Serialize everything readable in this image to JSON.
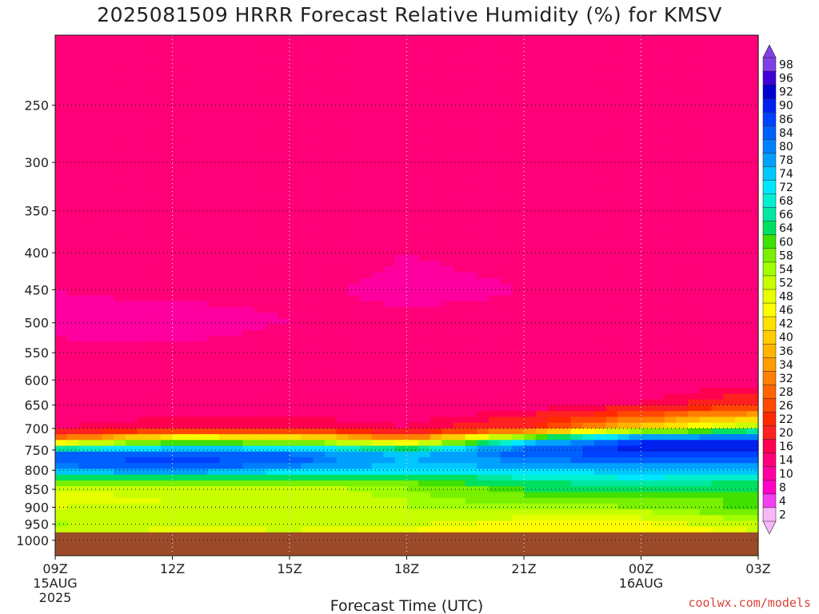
{
  "title": "2025081509 HRRR Forecast Relative Humidity (%) for KMSV",
  "credit": "coolwx.com/models",
  "chart_data": {
    "type": "heatmap",
    "title": "2025081509 HRRR Forecast Relative Humidity (%) for KMSV",
    "xlabel": "Forecast Time (UTC)",
    "ylabel": "",
    "x_ticks": [
      "09Z",
      "12Z",
      "15Z",
      "18Z",
      "21Z",
      "00Z",
      "03Z"
    ],
    "x_tick_hours": [
      0,
      3,
      6,
      9,
      12,
      15,
      18
    ],
    "x_sublabels": [
      {
        "tick": "09Z",
        "lines": [
          "15AUG",
          "2025"
        ]
      },
      {
        "tick": "00Z",
        "lines": [
          "16AUG"
        ]
      }
    ],
    "x_range_hours": [
      0,
      18
    ],
    "y_ticks": [
      250,
      300,
      350,
      400,
      450,
      500,
      550,
      600,
      650,
      700,
      750,
      800,
      850,
      900,
      950,
      1000
    ],
    "y_range_hpa": [
      200,
      1050
    ],
    "y_scale": "log-pressure",
    "grid": true,
    "below_ground_color": "#9b4a2a",
    "colorbar": {
      "levels": [
        2,
        4,
        8,
        10,
        14,
        16,
        20,
        22,
        26,
        28,
        32,
        34,
        36,
        40,
        42,
        46,
        48,
        52,
        54,
        58,
        60,
        64,
        66,
        68,
        72,
        74,
        78,
        80,
        84,
        86,
        90,
        92,
        96,
        98
      ],
      "colors": [
        "#f7b8f7",
        "#f040f0",
        "#ff00c8",
        "#ff00a0",
        "#ff0078",
        "#ff0050",
        "#ff2020",
        "#ff2a00",
        "#ff4800",
        "#ff6400",
        "#ff8000",
        "#ff9c00",
        "#ffb400",
        "#ffcc00",
        "#ffe000",
        "#ffff00",
        "#e8ff00",
        "#c8ff00",
        "#a0ff00",
        "#78f000",
        "#40e000",
        "#00e060",
        "#00e8a0",
        "#00f0d0",
        "#00e8ff",
        "#00c8ff",
        "#00a0ff",
        "#0080ff",
        "#0060ff",
        "#0040ff",
        "#0020f0",
        "#0000d0",
        "#4000d8",
        "#8040e8"
      ],
      "position": "right"
    },
    "rh_profile_p": [
      200,
      250,
      300,
      350,
      400,
      450,
      500,
      550,
      600,
      650,
      700,
      715,
      730,
      745,
      760,
      780,
      800,
      820,
      850,
      880,
      900,
      930,
      960,
      975,
      1000
    ],
    "columns": [
      {
        "hour": 0,
        "surface_hpa": 975,
        "rh": [
          12,
          10,
          12,
          12,
          12,
          10,
          9,
          11,
          12,
          11,
          14,
          20,
          40,
          62,
          80,
          82,
          76,
          60,
          48,
          46,
          48,
          50,
          54,
          48,
          48
        ]
      },
      {
        "hour": 3,
        "surface_hpa": 975,
        "rh": [
          14,
          12,
          12,
          12,
          12,
          11,
          8,
          11,
          12,
          12,
          16,
          36,
          56,
          72,
          84,
          86,
          78,
          62,
          50,
          48,
          50,
          50,
          48,
          46,
          46
        ]
      },
      {
        "hour": 6,
        "surface_hpa": 975,
        "rh": [
          12,
          12,
          12,
          12,
          12,
          11,
          10,
          12,
          12,
          12,
          16,
          36,
          54,
          70,
          80,
          82,
          74,
          60,
          50,
          50,
          52,
          52,
          50,
          46,
          46
        ]
      },
      {
        "hour": 9,
        "surface_hpa": 975,
        "rh": [
          12,
          12,
          12,
          10,
          10,
          9,
          11,
          12,
          12,
          12,
          14,
          22,
          40,
          62,
          72,
          74,
          70,
          60,
          54,
          52,
          52,
          50,
          48,
          44,
          44
        ]
      },
      {
        "hour": 12,
        "surface_hpa": 975,
        "rh": [
          12,
          12,
          12,
          12,
          11,
          10,
          11,
          12,
          12,
          12,
          20,
          48,
          70,
          80,
          82,
          78,
          72,
          66,
          60,
          56,
          52,
          48,
          42,
          42,
          42
        ]
      },
      {
        "hour": 15,
        "surface_hpa": 975,
        "rh": [
          12,
          12,
          12,
          12,
          12,
          11,
          10,
          12,
          12,
          14,
          40,
          72,
          86,
          88,
          86,
          80,
          74,
          68,
          62,
          58,
          54,
          48,
          44,
          42,
          42
        ]
      },
      {
        "hour": 18,
        "surface_hpa": 975,
        "rh": [
          12,
          12,
          12,
          14,
          12,
          12,
          11,
          12,
          12,
          20,
          56,
          76,
          88,
          90,
          86,
          80,
          74,
          66,
          60,
          58,
          60,
          54,
          50,
          46,
          46
        ]
      }
    ]
  }
}
